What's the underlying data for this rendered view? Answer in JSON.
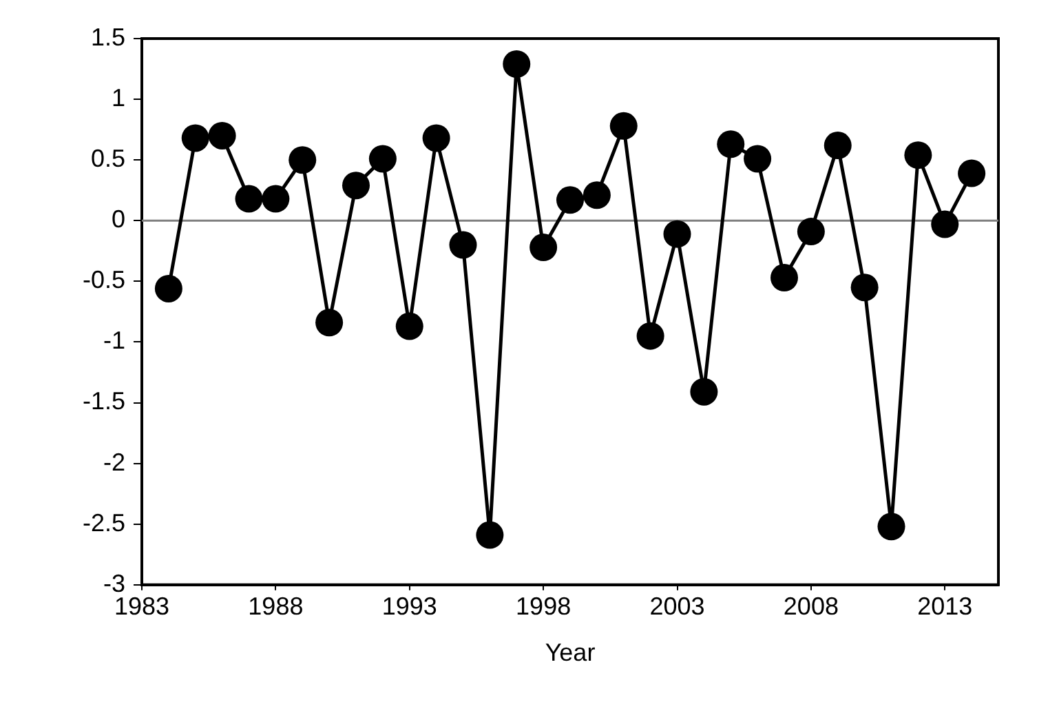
{
  "chart_data": {
    "type": "line",
    "xlabel": "Year",
    "x": [
      1984,
      1985,
      1986,
      1987,
      1988,
      1989,
      1990,
      1991,
      1992,
      1993,
      1994,
      1995,
      1996,
      1997,
      1998,
      1999,
      2000,
      2001,
      2002,
      2003,
      2004,
      2005,
      2006,
      2007,
      2008,
      2009,
      2010,
      2011,
      2012,
      2013,
      2014
    ],
    "series": [
      {
        "color": "#000000",
        "values": [
          -0.56,
          0.68,
          0.7,
          0.18,
          0.18,
          0.5,
          -0.84,
          0.29,
          0.51,
          -0.87,
          0.68,
          -0.2,
          -2.59,
          1.29,
          -0.22,
          0.17,
          0.21,
          0.78,
          -0.95,
          -0.11,
          -1.41,
          0.63,
          0.51,
          -0.47,
          -0.09,
          0.62,
          -0.55,
          -2.52,
          0.54,
          -0.03,
          0.39
        ]
      }
    ],
    "xlim": [
      1983,
      2015
    ],
    "xticks": [
      1983,
      1988,
      1993,
      1998,
      2003,
      2008,
      2013
    ],
    "ylim": [
      -3,
      1.5
    ],
    "yticks": [
      -3,
      -2.5,
      -2,
      -1.5,
      -1,
      -0.5,
      0,
      0.5,
      1,
      1.5
    ],
    "ref_lines": [
      {
        "axis": "y",
        "value": 0,
        "color": "#808080"
      }
    ],
    "grid": false,
    "legend": false,
    "marker": "circle",
    "line_style": "solid"
  }
}
